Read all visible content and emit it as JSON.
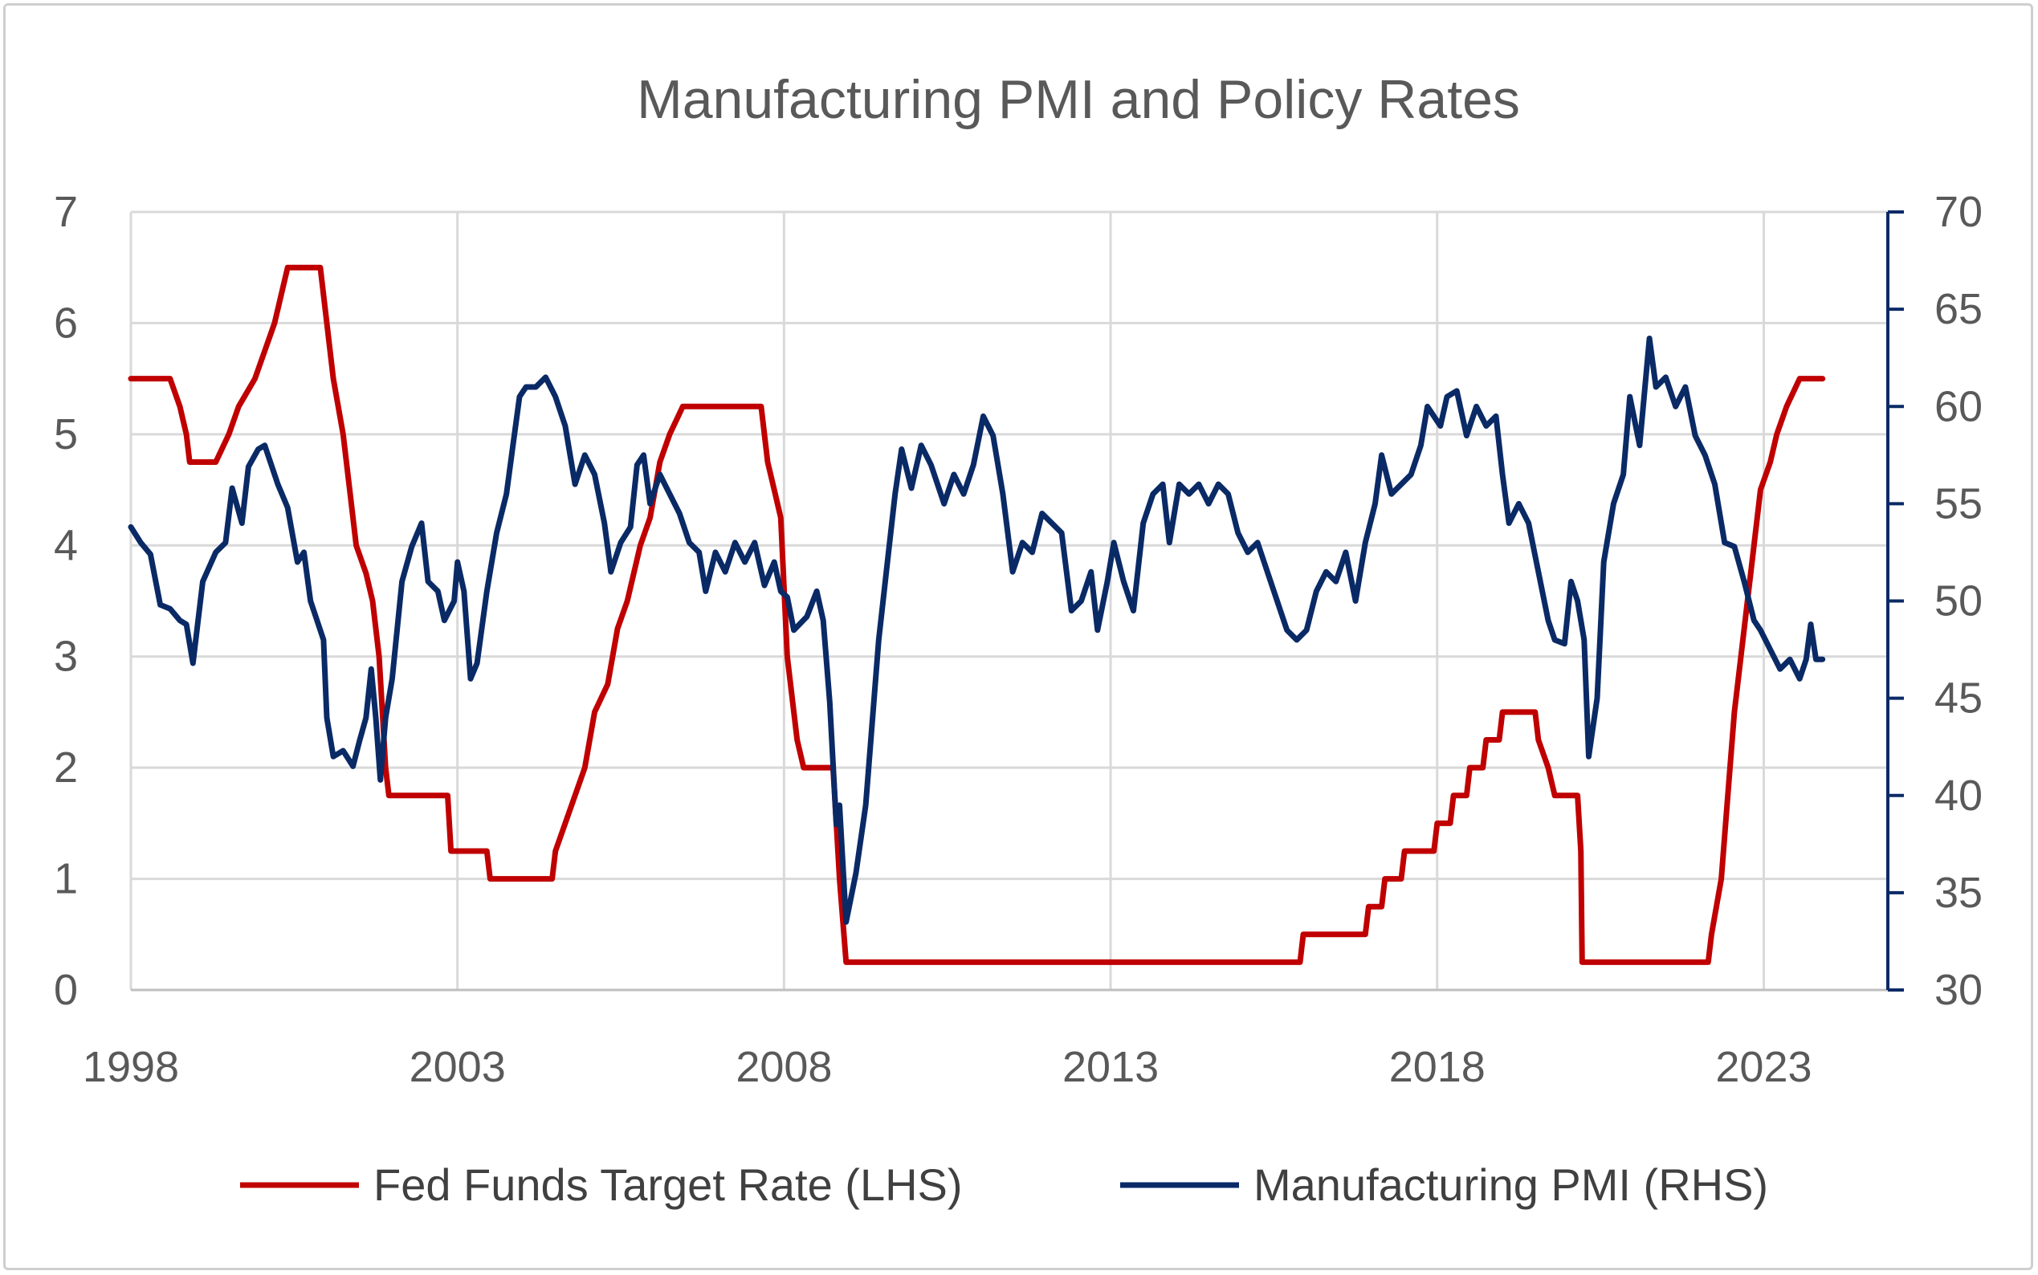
{
  "chart_data": {
    "type": "line",
    "title": "Manufacturing PMI and Policy Rates",
    "xlabel": "",
    "x_ticks": [
      "1998",
      "2003",
      "2008",
      "2013",
      "2018",
      "2023"
    ],
    "xlim": [
      1998,
      2024.9
    ],
    "y_left": {
      "label": "",
      "ylim": [
        0,
        7
      ],
      "ticks": [
        "0",
        "1",
        "2",
        "3",
        "4",
        "5",
        "6",
        "7"
      ]
    },
    "y_right": {
      "label": "",
      "ylim": [
        30,
        70
      ],
      "ticks": [
        "30",
        "35",
        "40",
        "45",
        "50",
        "55",
        "60",
        "65",
        "70"
      ]
    },
    "grid": true,
    "legend_position": "bottom",
    "series": [
      {
        "name": "Fed Funds Target Rate (LHS)",
        "axis": "left",
        "color": "#c00000",
        "points": [
          [
            1998.0,
            5.5
          ],
          [
            1998.6,
            5.5
          ],
          [
            1998.75,
            5.25
          ],
          [
            1998.85,
            5.0
          ],
          [
            1998.9,
            4.75
          ],
          [
            1999.3,
            4.75
          ],
          [
            1999.5,
            5.0
          ],
          [
            1999.65,
            5.25
          ],
          [
            1999.9,
            5.5
          ],
          [
            2000.05,
            5.75
          ],
          [
            2000.2,
            6.0
          ],
          [
            2000.4,
            6.5
          ],
          [
            2000.9,
            6.5
          ],
          [
            2001.0,
            6.0
          ],
          [
            2001.1,
            5.5
          ],
          [
            2001.25,
            5.0
          ],
          [
            2001.35,
            4.5
          ],
          [
            2001.45,
            4.0
          ],
          [
            2001.6,
            3.75
          ],
          [
            2001.7,
            3.5
          ],
          [
            2001.8,
            3.0
          ],
          [
            2001.85,
            2.5
          ],
          [
            2001.9,
            2.0
          ],
          [
            2001.95,
            1.75
          ],
          [
            2002.85,
            1.75
          ],
          [
            2002.9,
            1.25
          ],
          [
            2003.45,
            1.25
          ],
          [
            2003.5,
            1.0
          ],
          [
            2004.45,
            1.0
          ],
          [
            2004.5,
            1.25
          ],
          [
            2004.65,
            1.5
          ],
          [
            2004.8,
            1.75
          ],
          [
            2004.95,
            2.0
          ],
          [
            2005.1,
            2.5
          ],
          [
            2005.3,
            2.75
          ],
          [
            2005.45,
            3.25
          ],
          [
            2005.6,
            3.5
          ],
          [
            2005.8,
            4.0
          ],
          [
            2005.95,
            4.25
          ],
          [
            2006.1,
            4.75
          ],
          [
            2006.25,
            5.0
          ],
          [
            2006.45,
            5.25
          ],
          [
            2007.65,
            5.25
          ],
          [
            2007.75,
            4.75
          ],
          [
            2007.85,
            4.5
          ],
          [
            2007.95,
            4.25
          ],
          [
            2008.05,
            3.0
          ],
          [
            2008.2,
            2.25
          ],
          [
            2008.3,
            2.0
          ],
          [
            2008.75,
            2.0
          ],
          [
            2008.8,
            1.5
          ],
          [
            2008.85,
            1.0
          ],
          [
            2008.95,
            0.25
          ],
          [
            2015.9,
            0.25
          ],
          [
            2015.95,
            0.5
          ],
          [
            2016.9,
            0.5
          ],
          [
            2016.95,
            0.75
          ],
          [
            2017.15,
            0.75
          ],
          [
            2017.2,
            1.0
          ],
          [
            2017.45,
            1.0
          ],
          [
            2017.5,
            1.25
          ],
          [
            2017.95,
            1.25
          ],
          [
            2018.0,
            1.5
          ],
          [
            2018.2,
            1.5
          ],
          [
            2018.25,
            1.75
          ],
          [
            2018.45,
            1.75
          ],
          [
            2018.5,
            2.0
          ],
          [
            2018.7,
            2.0
          ],
          [
            2018.75,
            2.25
          ],
          [
            2018.95,
            2.25
          ],
          [
            2019.0,
            2.5
          ],
          [
            2019.5,
            2.5
          ],
          [
            2019.55,
            2.25
          ],
          [
            2019.7,
            2.0
          ],
          [
            2019.8,
            1.75
          ],
          [
            2020.15,
            1.75
          ],
          [
            2020.2,
            1.25
          ],
          [
            2020.22,
            0.25
          ],
          [
            2022.15,
            0.25
          ],
          [
            2022.2,
            0.5
          ],
          [
            2022.35,
            1.0
          ],
          [
            2022.45,
            1.75
          ],
          [
            2022.55,
            2.5
          ],
          [
            2022.7,
            3.25
          ],
          [
            2022.85,
            4.0
          ],
          [
            2022.95,
            4.5
          ],
          [
            2023.1,
            4.75
          ],
          [
            2023.2,
            5.0
          ],
          [
            2023.35,
            5.25
          ],
          [
            2023.55,
            5.5
          ],
          [
            2023.9,
            5.5
          ]
        ]
      },
      {
        "name": "Manufacturing PMI (RHS)",
        "axis": "right",
        "color": "#0a2a66",
        "points": [
          [
            1998.0,
            53.8
          ],
          [
            1998.15,
            53.0
          ],
          [
            1998.3,
            52.4
          ],
          [
            1998.45,
            49.8
          ],
          [
            1998.6,
            49.6
          ],
          [
            1998.75,
            49.0
          ],
          [
            1998.85,
            48.8
          ],
          [
            1998.95,
            46.8
          ],
          [
            1999.1,
            51.0
          ],
          [
            1999.3,
            52.5
          ],
          [
            1999.45,
            53.0
          ],
          [
            1999.55,
            55.8
          ],
          [
            1999.7,
            54.0
          ],
          [
            1999.8,
            56.9
          ],
          [
            1999.95,
            57.8
          ],
          [
            2000.05,
            58.0
          ],
          [
            2000.25,
            56.0
          ],
          [
            2000.4,
            54.8
          ],
          [
            2000.55,
            52.0
          ],
          [
            2000.65,
            52.5
          ],
          [
            2000.75,
            50.0
          ],
          [
            2000.85,
            49.0
          ],
          [
            2000.95,
            48.0
          ],
          [
            2001.0,
            44.0
          ],
          [
            2001.1,
            42.0
          ],
          [
            2001.25,
            42.3
          ],
          [
            2001.4,
            41.5
          ],
          [
            2001.5,
            42.8
          ],
          [
            2001.6,
            44.0
          ],
          [
            2001.68,
            46.5
          ],
          [
            2001.75,
            44.0
          ],
          [
            2001.82,
            40.8
          ],
          [
            2001.9,
            44.0
          ],
          [
            2002.0,
            46.0
          ],
          [
            2002.15,
            51.0
          ],
          [
            2002.3,
            52.8
          ],
          [
            2002.45,
            54.0
          ],
          [
            2002.55,
            51.0
          ],
          [
            2002.7,
            50.5
          ],
          [
            2002.8,
            49.0
          ],
          [
            2002.95,
            50.0
          ],
          [
            2003.0,
            52.0
          ],
          [
            2003.1,
            50.5
          ],
          [
            2003.2,
            46.0
          ],
          [
            2003.3,
            46.8
          ],
          [
            2003.45,
            50.5
          ],
          [
            2003.6,
            53.5
          ],
          [
            2003.75,
            55.5
          ],
          [
            2003.85,
            58.0
          ],
          [
            2003.95,
            60.5
          ],
          [
            2004.05,
            61.0
          ],
          [
            2004.2,
            61.0
          ],
          [
            2004.35,
            61.5
          ],
          [
            2004.5,
            60.5
          ],
          [
            2004.65,
            59.0
          ],
          [
            2004.8,
            56.0
          ],
          [
            2004.95,
            57.5
          ],
          [
            2005.1,
            56.5
          ],
          [
            2005.25,
            54.0
          ],
          [
            2005.35,
            51.5
          ],
          [
            2005.5,
            53.0
          ],
          [
            2005.65,
            53.8
          ],
          [
            2005.75,
            57.0
          ],
          [
            2005.85,
            57.5
          ],
          [
            2005.95,
            55.0
          ],
          [
            2006.1,
            56.5
          ],
          [
            2006.25,
            55.5
          ],
          [
            2006.4,
            54.5
          ],
          [
            2006.55,
            53.0
          ],
          [
            2006.7,
            52.5
          ],
          [
            2006.8,
            50.5
          ],
          [
            2006.95,
            52.5
          ],
          [
            2007.1,
            51.5
          ],
          [
            2007.25,
            53.0
          ],
          [
            2007.4,
            52.0
          ],
          [
            2007.55,
            53.0
          ],
          [
            2007.7,
            50.8
          ],
          [
            2007.85,
            52.0
          ],
          [
            2007.95,
            50.5
          ],
          [
            2008.05,
            50.2
          ],
          [
            2008.15,
            48.5
          ],
          [
            2008.35,
            49.2
          ],
          [
            2008.5,
            50.5
          ],
          [
            2008.6,
            49.0
          ],
          [
            2008.7,
            44.8
          ],
          [
            2008.8,
            38.5
          ],
          [
            2008.85,
            39.5
          ],
          [
            2008.95,
            33.5
          ],
          [
            2009.1,
            36.0
          ],
          [
            2009.25,
            39.5
          ],
          [
            2009.45,
            48.0
          ],
          [
            2009.6,
            52.5
          ],
          [
            2009.7,
            55.5
          ],
          [
            2009.8,
            57.8
          ],
          [
            2009.95,
            55.8
          ],
          [
            2010.1,
            58.0
          ],
          [
            2010.25,
            57.0
          ],
          [
            2010.45,
            55.0
          ],
          [
            2010.6,
            56.5
          ],
          [
            2010.75,
            55.5
          ],
          [
            2010.9,
            57.0
          ],
          [
            2011.05,
            59.5
          ],
          [
            2011.2,
            58.5
          ],
          [
            2011.35,
            55.5
          ],
          [
            2011.5,
            51.5
          ],
          [
            2011.65,
            53.0
          ],
          [
            2011.8,
            52.5
          ],
          [
            2011.95,
            54.5
          ],
          [
            2012.1,
            54.0
          ],
          [
            2012.25,
            53.5
          ],
          [
            2012.4,
            49.5
          ],
          [
            2012.55,
            50.0
          ],
          [
            2012.7,
            51.5
          ],
          [
            2012.8,
            48.5
          ],
          [
            2012.95,
            51.0
          ],
          [
            2013.05,
            53.0
          ],
          [
            2013.2,
            51.0
          ],
          [
            2013.35,
            49.5
          ],
          [
            2013.5,
            54.0
          ],
          [
            2013.65,
            55.5
          ],
          [
            2013.8,
            56.0
          ],
          [
            2013.9,
            53.0
          ],
          [
            2014.05,
            56.0
          ],
          [
            2014.2,
            55.5
          ],
          [
            2014.35,
            56.0
          ],
          [
            2014.5,
            55.0
          ],
          [
            2014.65,
            56.0
          ],
          [
            2014.8,
            55.5
          ],
          [
            2014.95,
            53.5
          ],
          [
            2015.1,
            52.5
          ],
          [
            2015.25,
            53.0
          ],
          [
            2015.4,
            51.5
          ],
          [
            2015.55,
            50.0
          ],
          [
            2015.7,
            48.5
          ],
          [
            2015.85,
            48.0
          ],
          [
            2016.0,
            48.5
          ],
          [
            2016.15,
            50.5
          ],
          [
            2016.3,
            51.5
          ],
          [
            2016.45,
            51.0
          ],
          [
            2016.6,
            52.5
          ],
          [
            2016.75,
            50.0
          ],
          [
            2016.9,
            53.0
          ],
          [
            2017.05,
            55.0
          ],
          [
            2017.15,
            57.5
          ],
          [
            2017.3,
            55.5
          ],
          [
            2017.45,
            56.0
          ],
          [
            2017.6,
            56.5
          ],
          [
            2017.75,
            58.0
          ],
          [
            2017.85,
            60.0
          ],
          [
            2017.95,
            59.5
          ],
          [
            2018.05,
            59.0
          ],
          [
            2018.15,
            60.5
          ],
          [
            2018.3,
            60.8
          ],
          [
            2018.45,
            58.5
          ],
          [
            2018.6,
            60.0
          ],
          [
            2018.75,
            59.0
          ],
          [
            2018.9,
            59.5
          ],
          [
            2019.0,
            56.5
          ],
          [
            2019.1,
            54.0
          ],
          [
            2019.25,
            55.0
          ],
          [
            2019.4,
            54.0
          ],
          [
            2019.55,
            51.5
          ],
          [
            2019.7,
            49.0
          ],
          [
            2019.8,
            48.0
          ],
          [
            2019.95,
            47.8
          ],
          [
            2020.05,
            51.0
          ],
          [
            2020.15,
            50.0
          ],
          [
            2020.25,
            48.0
          ],
          [
            2020.32,
            42.0
          ],
          [
            2020.45,
            45.0
          ],
          [
            2020.55,
            52.0
          ],
          [
            2020.7,
            55.0
          ],
          [
            2020.85,
            56.5
          ],
          [
            2020.95,
            60.5
          ],
          [
            2021.1,
            58.0
          ],
          [
            2021.25,
            63.5
          ],
          [
            2021.35,
            61.0
          ],
          [
            2021.5,
            61.5
          ],
          [
            2021.65,
            60.0
          ],
          [
            2021.8,
            61.0
          ],
          [
            2021.95,
            58.5
          ],
          [
            2022.1,
            57.5
          ],
          [
            2022.25,
            56.0
          ],
          [
            2022.4,
            53.0
          ],
          [
            2022.55,
            52.8
          ],
          [
            2022.7,
            51.0
          ],
          [
            2022.85,
            49.0
          ],
          [
            2022.95,
            48.5
          ],
          [
            2023.1,
            47.5
          ],
          [
            2023.25,
            46.5
          ],
          [
            2023.4,
            47.0
          ],
          [
            2023.55,
            46.0
          ],
          [
            2023.65,
            47.0
          ],
          [
            2023.72,
            48.8
          ],
          [
            2023.8,
            47.0
          ],
          [
            2023.9,
            47.0
          ]
        ]
      }
    ]
  },
  "colors": {
    "fed_funds": "#c00000",
    "pmi": "#0a2a66",
    "grid": "#d9d9d9",
    "text": "#595959"
  }
}
